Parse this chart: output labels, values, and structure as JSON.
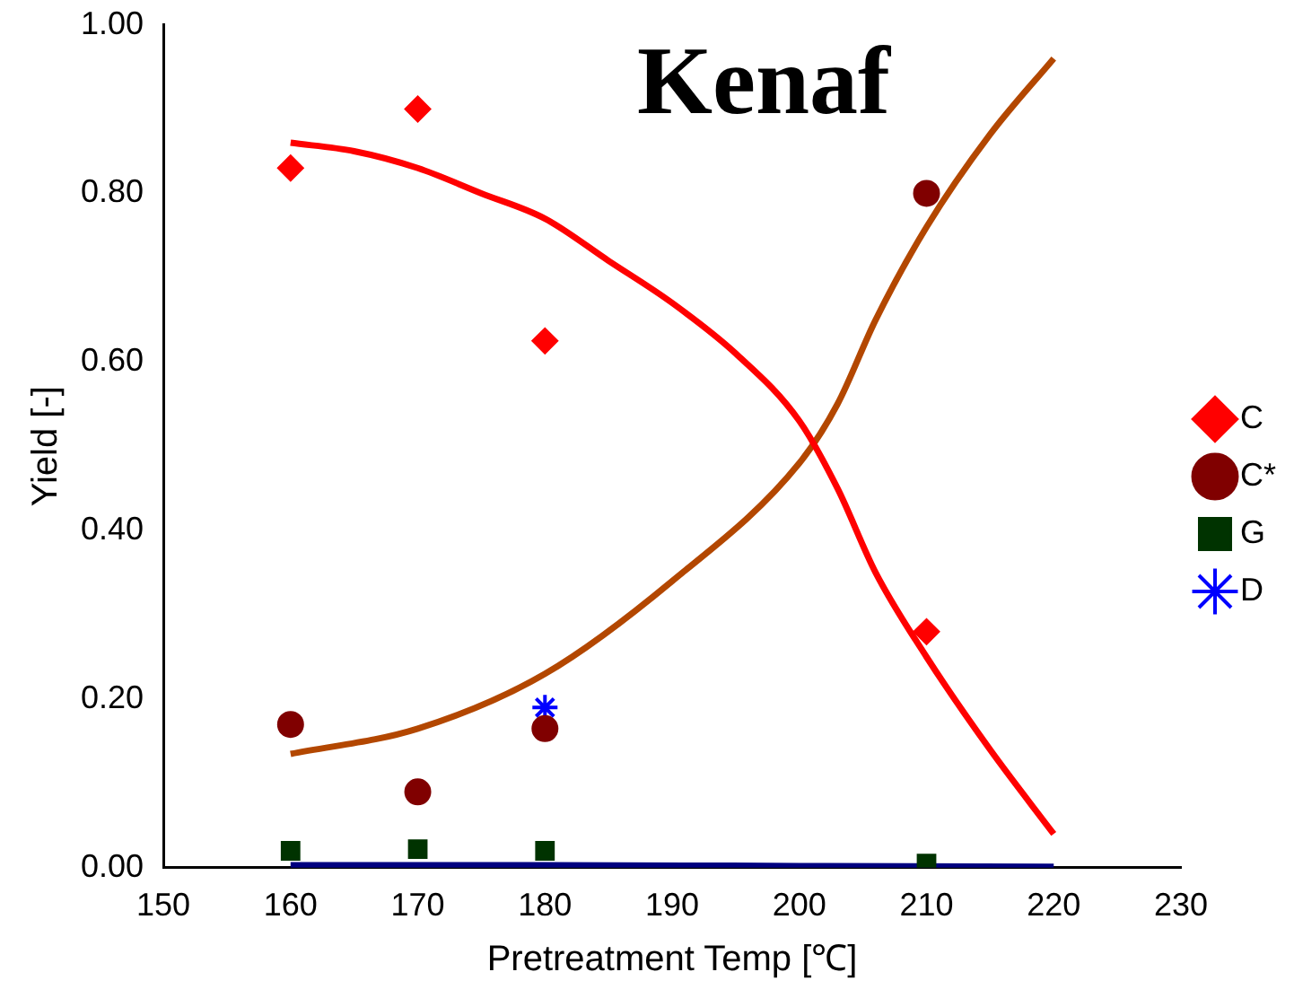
{
  "chart_data": {
    "type": "scatter",
    "title": "Kenaf",
    "xlabel": "Pretreatment Temp [℃]",
    "ylabel": "Yield [-]",
    "xlim": [
      150,
      230
    ],
    "xticks": [
      150,
      160,
      170,
      180,
      190,
      200,
      210,
      220,
      230
    ],
    "ylim": [
      0,
      1
    ],
    "yticks": [
      {
        "value": 0,
        "label": "0.00"
      },
      {
        "value": 0.2,
        "label": "0.20"
      },
      {
        "value": 0.4,
        "label": "0.40"
      },
      {
        "value": 0.6,
        "label": "0.60"
      },
      {
        "value": 0.8,
        "label": "0.80"
      },
      {
        "value": 1,
        "label": "1.00"
      }
    ],
    "grid": false,
    "legend": "right",
    "series": [
      {
        "name": "C",
        "marker": "diamond",
        "color": "#ff0000",
        "x": [
          160,
          170,
          180,
          210
        ],
        "values": [
          0.83,
          0.9,
          0.625,
          0.28
        ]
      },
      {
        "name": "C*",
        "marker": "circle",
        "color": "#800000",
        "x": [
          160,
          170,
          180,
          210
        ],
        "values": [
          0.17,
          0.09,
          0.165,
          0.8
        ]
      },
      {
        "name": "G",
        "marker": "square",
        "color": "#003300",
        "x": [
          160,
          170,
          180,
          210
        ],
        "values": [
          0.02,
          0.022,
          0.02,
          0.005
        ]
      },
      {
        "name": "D",
        "marker": "cross",
        "color": "#0000ff",
        "x": [
          180
        ],
        "values": [
          0.19
        ]
      },
      {
        "type": "line",
        "marker": "none",
        "color": "#ff0000",
        "x": [
          160,
          165,
          170,
          175,
          180,
          185,
          190,
          195,
          200,
          203,
          206,
          210,
          215,
          220
        ],
        "values": [
          0.86,
          0.85,
          0.83,
          0.8,
          0.77,
          0.72,
          0.67,
          0.61,
          0.53,
          0.45,
          0.35,
          0.25,
          0.14,
          0.04
        ]
      },
      {
        "type": "line",
        "marker": "none",
        "color": "#b34700",
        "x": [
          160,
          170,
          180,
          190,
          200,
          203,
          206,
          210,
          215,
          220
        ],
        "values": [
          0.135,
          0.165,
          0.23,
          0.34,
          0.48,
          0.55,
          0.65,
          0.76,
          0.87,
          0.96
        ]
      },
      {
        "type": "line",
        "marker": "none",
        "color": "#000080",
        "x": [
          160,
          180,
          200,
          220
        ],
        "values": [
          0.003,
          0.003,
          0.002,
          0.001
        ]
      }
    ]
  }
}
